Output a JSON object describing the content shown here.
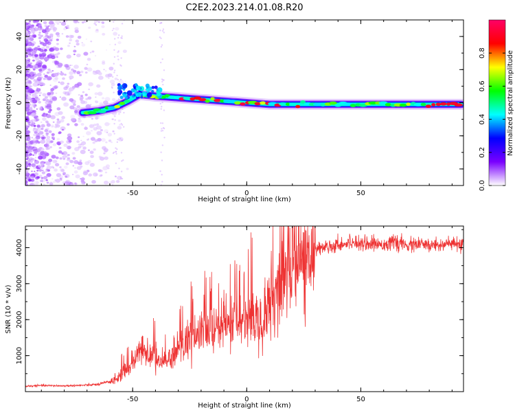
{
  "title": "C2E2.2023.214.01.08.R20",
  "chart_data": [
    {
      "type": "heatmap",
      "xlabel": "Height of straight line (km)",
      "ylabel": "Frequency (Hz)",
      "xlim": [
        -97,
        95
      ],
      "ylim": [
        -50,
        50
      ],
      "xticks": [
        -50,
        0,
        50
      ],
      "yticks": [
        -40,
        -20,
        0,
        20,
        40
      ],
      "grid": false,
      "ridge": {
        "x": [
          -72,
          -65,
          -58,
          -52,
          -47,
          -40,
          -30,
          -20,
          -10,
          0,
          10,
          20,
          30,
          40,
          50,
          60,
          70,
          80,
          94
        ],
        "freq": [
          -6,
          -5,
          -3,
          1,
          5,
          4,
          3,
          2,
          1,
          0,
          -1,
          -1,
          -1,
          -1,
          -1,
          -1,
          -1,
          -1,
          -1
        ]
      },
      "colorbar": {
        "label": "Normalized spectral amplitude",
        "range": [
          0.0,
          1.0
        ],
        "ticks": [
          0.0,
          0.2,
          0.4,
          0.6,
          0.8
        ],
        "tick_labels": [
          "0.0",
          "0.2",
          "0.4",
          "0.6",
          "0.8"
        ],
        "colors": [
          "#ffffff",
          "#7a00ff",
          "#0000ff",
          "#00ffff",
          "#00ff00",
          "#ffff00",
          "#ff0000",
          "#ff0066"
        ]
      }
    },
    {
      "type": "line",
      "xlabel": "Height of straight line (km)",
      "ylabel": "SNR (10 * v/v)",
      "xlim": [
        -97,
        95
      ],
      "ylim": [
        0,
        4600
      ],
      "xticks": [
        -50,
        0,
        50
      ],
      "yticks": [
        1000,
        2000,
        3000,
        4000
      ],
      "grid": false,
      "color": "#ee3333",
      "series": [
        {
          "x": [
            -97,
            -90,
            -80,
            -70,
            -65,
            -60,
            -57,
            -55,
            -52,
            -50,
            -48,
            -45,
            -42,
            -40,
            -38,
            -35,
            -32,
            -30,
            -28,
            -25,
            -22,
            -20,
            -18,
            -15,
            -12,
            -10,
            -8,
            -5,
            -3,
            0,
            2,
            5,
            7,
            8,
            10,
            12,
            15,
            17,
            20,
            23,
            25,
            28,
            30,
            33,
            35,
            38,
            40,
            43,
            45,
            48,
            50,
            55,
            60,
            65,
            70,
            75,
            80,
            85,
            90,
            95
          ],
          "y": [
            150,
            170,
            160,
            180,
            200,
            280,
            380,
            500,
            600,
            800,
            1000,
            1200,
            900,
            1100,
            700,
            900,
            1000,
            1300,
            1250,
            1500,
            1500,
            1700,
            1600,
            1750,
            1700,
            1900,
            1850,
            2000,
            1900,
            2100,
            2150,
            2100,
            1500,
            2200,
            2500,
            2700,
            3100,
            3300,
            3500,
            3650,
            3800,
            3900,
            3950,
            4000,
            4050,
            4050,
            4100,
            4100,
            4150,
            4150,
            4150,
            4100,
            4100,
            4150,
            4050,
            4100,
            4050,
            4100,
            4100,
            4050
          ]
        }
      ]
    }
  ]
}
